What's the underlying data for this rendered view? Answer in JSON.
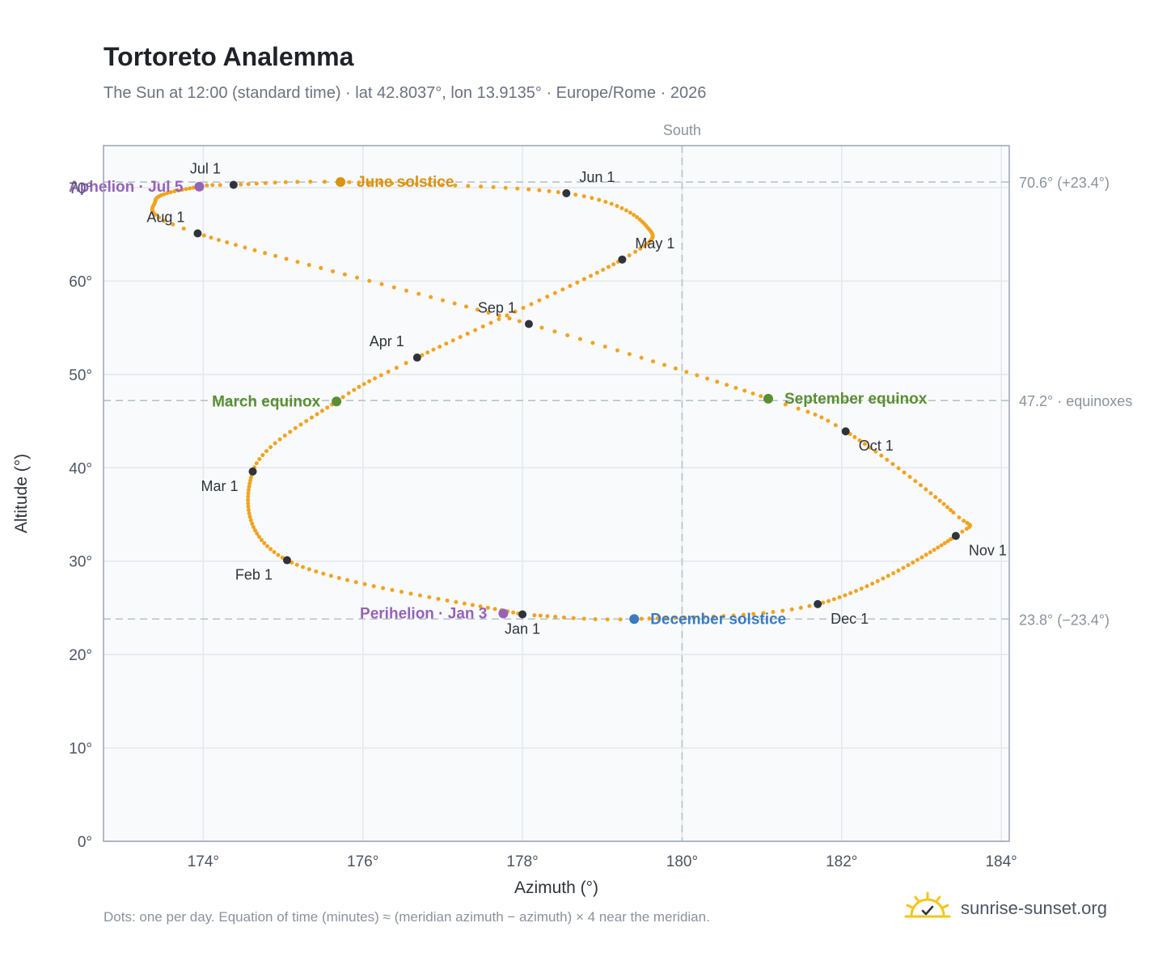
{
  "title": "Tortoreto Analemma",
  "subtitle": "The Sun at 12:00 (standard time) · lat 42.8037°, lon 13.9135° · Europe/Rome · 2026",
  "footnote": "Dots: one per day. Equation of time (minutes) ≈ (meridian azimuth − azimuth) × 4 near the meridian.",
  "brand": {
    "name": "sunrise-sunset.org",
    "icon": "sun-logo-icon"
  },
  "colors": {
    "path": "#f2a31f",
    "month_marker": "#2f343b",
    "june_solstice": "#d99310",
    "december_solstice": "#3a7bc0",
    "equinox": "#5a8f32",
    "apsis": "#9563b8",
    "reference_line": "#b5c3cc",
    "plot_bg": "#f8fafc",
    "grid": "#e2e8ee",
    "frame": "#9aa5b1"
  },
  "chart_data": {
    "type": "scatter",
    "xlabel": "Azimuth (°)",
    "ylabel": "Altitude (°)",
    "xlim": [
      172.75,
      184.1
    ],
    "ylim": [
      0,
      74.5
    ],
    "x_ticks": [
      174,
      176,
      178,
      180,
      182,
      184
    ],
    "x_tick_labels": [
      "174°",
      "176°",
      "178°",
      "180°",
      "182°",
      "184°"
    ],
    "y_ticks": [
      0,
      10,
      20,
      30,
      40,
      50,
      60,
      70
    ],
    "y_tick_labels": [
      "0°",
      "10°",
      "20°",
      "30°",
      "40°",
      "50°",
      "60°",
      "70°"
    ],
    "grid": true,
    "series": [
      {
        "key": "daily",
        "anchors": [
          {
            "day": 0,
            "az": 178.0,
            "alt": 24.3
          },
          {
            "day": 31,
            "az": 175.05,
            "alt": 30.1
          },
          {
            "day": 59,
            "az": 174.62,
            "alt": 39.6
          },
          {
            "day": 78,
            "az": 175.67,
            "alt": 47.1
          },
          {
            "day": 90,
            "az": 176.68,
            "alt": 51.8
          },
          {
            "day": 120,
            "az": 179.25,
            "alt": 62.3
          },
          {
            "day": 135,
            "az": 179.55,
            "alt": 65.9
          },
          {
            "day": 151,
            "az": 178.55,
            "alt": 69.4
          },
          {
            "day": 171,
            "az": 175.72,
            "alt": 70.6
          },
          {
            "day": 181,
            "az": 174.38,
            "alt": 70.3
          },
          {
            "day": 185,
            "az": 173.95,
            "alt": 70.1
          },
          {
            "day": 200,
            "az": 173.4,
            "alt": 68.6
          },
          {
            "day": 212,
            "az": 173.93,
            "alt": 65.1
          },
          {
            "day": 243,
            "az": 178.08,
            "alt": 55.4
          },
          {
            "day": 265,
            "az": 181.08,
            "alt": 47.4
          },
          {
            "day": 273,
            "az": 182.05,
            "alt": 43.9
          },
          {
            "day": 295,
            "az": 183.4,
            "alt": 35.2
          },
          {
            "day": 304,
            "az": 183.43,
            "alt": 32.7
          },
          {
            "day": 334,
            "az": 181.7,
            "alt": 25.4
          },
          {
            "day": 354,
            "az": 179.4,
            "alt": 23.8
          },
          {
            "day": 364,
            "az": 178.15,
            "alt": 24.2
          }
        ]
      }
    ],
    "month_markers": [
      {
        "label": "Jan 1",
        "az": 178.0,
        "alt": 24.3,
        "label_pos": "below"
      },
      {
        "label": "Feb 1",
        "az": 175.05,
        "alt": 30.1,
        "label_pos": "below-left"
      },
      {
        "label": "Mar 1",
        "az": 174.62,
        "alt": 39.6,
        "label_pos": "below-left"
      },
      {
        "label": "Apr 1",
        "az": 176.68,
        "alt": 51.8,
        "label_pos": "above-left"
      },
      {
        "label": "May 1",
        "az": 179.25,
        "alt": 62.3,
        "label_pos": "above-right"
      },
      {
        "label": "Jun 1",
        "az": 178.55,
        "alt": 69.4,
        "label_pos": "above-right"
      },
      {
        "label": "Jul 1",
        "az": 174.38,
        "alt": 70.3,
        "label_pos": "above-left"
      },
      {
        "label": "Aug 1",
        "az": 173.93,
        "alt": 65.1,
        "label_pos": "above-left"
      },
      {
        "label": "Sep 1",
        "az": 178.08,
        "alt": 55.4,
        "label_pos": "above-left"
      },
      {
        "label": "Oct 1",
        "az": 182.05,
        "alt": 43.9,
        "label_pos": "below-right"
      },
      {
        "label": "Nov 1",
        "az": 183.43,
        "alt": 32.7,
        "label_pos": "below-right"
      },
      {
        "label": "Dec 1",
        "az": 181.7,
        "alt": 25.4,
        "label_pos": "below-right"
      }
    ],
    "events": [
      {
        "label": "June solstice",
        "az": 175.72,
        "alt": 70.6,
        "color_key": "june_solstice",
        "label_pos": "right"
      },
      {
        "label": "December solstice",
        "az": 179.4,
        "alt": 23.8,
        "color_key": "december_solstice",
        "label_pos": "right"
      },
      {
        "label": "March equinox",
        "az": 175.67,
        "alt": 47.1,
        "color_key": "equinox",
        "label_pos": "left"
      },
      {
        "label": "September equinox",
        "az": 181.08,
        "alt": 47.4,
        "color_key": "equinox",
        "label_pos": "right"
      },
      {
        "label": "Aphelion · Jul 5",
        "az": 173.95,
        "alt": 70.1,
        "color_key": "apsis",
        "label_pos": "left"
      },
      {
        "label": "Perihelion · Jan 3",
        "az": 177.76,
        "alt": 24.4,
        "color_key": "apsis",
        "label_pos": "left"
      }
    ],
    "reference_lines": [
      {
        "axis": "y",
        "value": 70.6,
        "label": "70.6° (+23.4°)"
      },
      {
        "axis": "y",
        "value": 47.2,
        "label": "47.2° · equinoxes"
      },
      {
        "axis": "y",
        "value": 23.8,
        "label": "23.8° (−23.4°)"
      },
      {
        "axis": "x",
        "value": 180,
        "label": "South"
      }
    ]
  }
}
